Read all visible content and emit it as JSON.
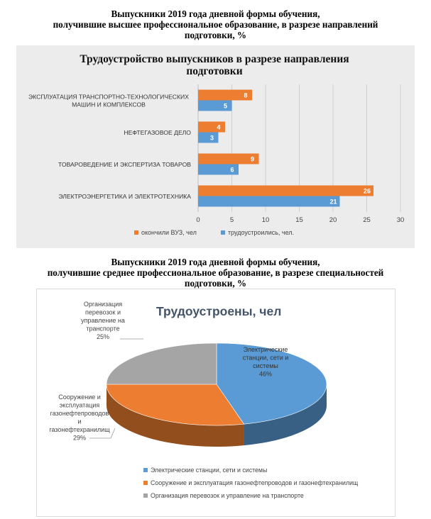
{
  "caption1": [
    "Выпускники 2019 года дневной формы обучения,",
    "получившие высшее профессиональное образование, в разрезе направлений",
    "подготовки, %"
  ],
  "caption2": [
    "Выпускники 2019 года дневной формы обучения,",
    "получившие среднее профессиональное образование, в разрезе специальностей",
    "подготовки, %"
  ],
  "colors": {
    "orange": "#ed7d31",
    "blue": "#5b9bd5",
    "gray": "#a5a5a5",
    "title_blue": "#44546a"
  },
  "chart_data": [
    {
      "type": "bar",
      "orientation": "horizontal",
      "title": [
        "Трудоустройство выпускников в разрезе направления",
        "подготовки"
      ],
      "categories": [
        [
          "ЭКСПЛУАТАЦИЯ ТРАНСПОРТНО-ТЕХНОЛОГИЧЕСКИХ",
          "МАШИН И КОМПЛЕКСОВ"
        ],
        [
          "НЕФТЕГАЗОВОЕ ДЕЛО"
        ],
        [
          "ТОВАРОВЕДЕНИЕ И ЭКСПЕРТИЗА ТОВАРОВ"
        ],
        [
          "ЭЛЕКТРОЭНЕРГЕТИКА И ЭЛЕКТРОТЕХНИКА"
        ]
      ],
      "series": [
        {
          "name": "окончили ВУЗ, чел",
          "color": "#ed7d31",
          "values": [
            8,
            4,
            9,
            26
          ]
        },
        {
          "name": "трудоустроились, чел.",
          "color": "#5b9bd5",
          "values": [
            5,
            3,
            6,
            21
          ]
        }
      ],
      "xlim": [
        0,
        30
      ],
      "xticks": [
        0,
        5,
        10,
        15,
        20,
        25,
        30
      ],
      "grid": true,
      "legend": "bottom"
    },
    {
      "type": "pie",
      "style": "3d",
      "title": "Трудоустроены, чел",
      "slices": [
        {
          "label": [
            "Электрические",
            "станции, сети и",
            "системы"
          ],
          "pct": "46%",
          "value": 46,
          "color": "#5b9bd5",
          "legend": "Электрические станции, сети и системы"
        },
        {
          "label": [
            "Сооружение и",
            "эксплуатация",
            "газонефтепроводов",
            "и",
            "газонефтехранилищ"
          ],
          "pct": "29%",
          "value": 29,
          "color": "#ed7d31",
          "legend": "Сооружение и эксплуатация газонефтепроводов и газонефтехранилищ"
        },
        {
          "label": [
            "Организация",
            "перевозок и",
            "управление на",
            "транспорте"
          ],
          "pct": "25%",
          "value": 25,
          "color": "#a5a5a5",
          "legend": "Организация перевозок и управление на транспорте"
        }
      ],
      "legend": "bottom"
    }
  ]
}
